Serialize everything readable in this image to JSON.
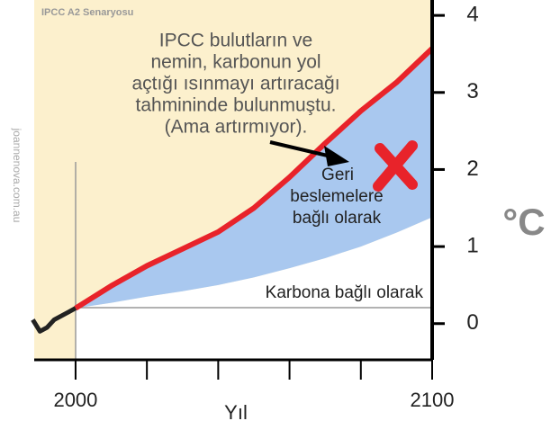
{
  "chart_data": {
    "type": "line",
    "title": "IPCC A2 Senaryosu",
    "source": "joannenova.com.au",
    "x_label": "Yıl",
    "y_label": "°C",
    "annotation": [
      "IPCC bulutların ve",
      "nemin, karbonun yol",
      "açtığı ısınmayı artıracağı",
      "tahmininde bulunmuştu.",
      "(Ama artırmıyor)."
    ],
    "x": [
      2000,
      2010,
      2020,
      2030,
      2040,
      2050,
      2060,
      2070,
      2080,
      2090,
      2100
    ],
    "series": [
      {
        "name": "Geri beslemelere bağlı olarak",
        "color": "#e8232a",
        "values": [
          0.2,
          0.49,
          0.75,
          0.97,
          1.19,
          1.5,
          1.9,
          2.34,
          2.76,
          3.13,
          3.57
        ]
      },
      {
        "name": "Karbona bağlı olarak",
        "color": "#a9c8ef",
        "values": [
          0.2,
          0.27,
          0.35,
          0.42,
          0.5,
          0.6,
          0.72,
          0.85,
          1.0,
          1.18,
          1.38
        ]
      }
    ],
    "history": {
      "x": [
        1988,
        1990,
        1992,
        1994,
        1996,
        1998,
        2000
      ],
      "values": [
        0.05,
        -0.1,
        -0.05,
        0.05,
        0.1,
        0.15,
        0.2
      ],
      "color": "#222222"
    },
    "xlim": [
      1988.4,
      2100
    ],
    "xticks": [
      2000,
      2020,
      2040,
      2060,
      2080,
      2100
    ],
    "ylim": [
      -0.47,
      4.2
    ],
    "yticks": [
      0,
      1,
      2,
      3,
      4
    ]
  }
}
